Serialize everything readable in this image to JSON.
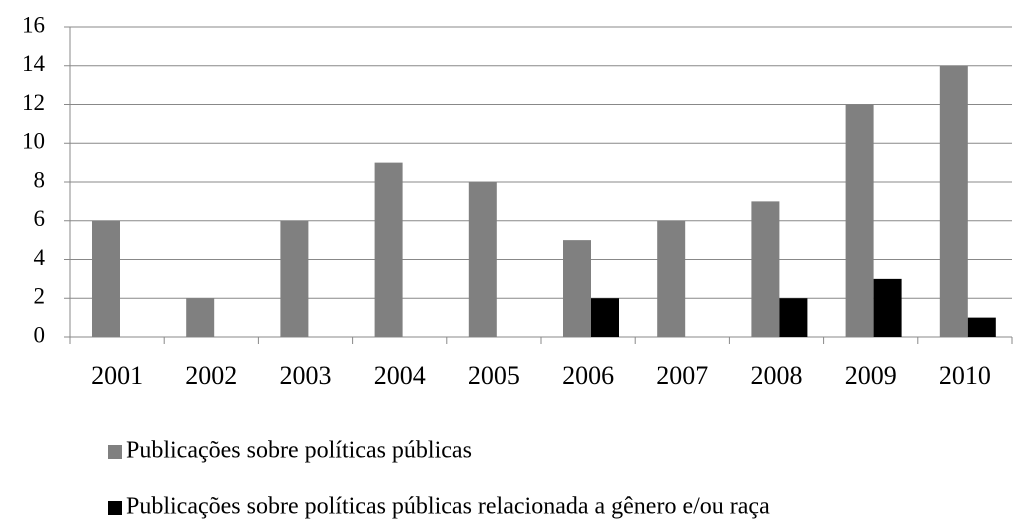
{
  "chart_data": {
    "type": "bar",
    "categories": [
      "2001",
      "2002",
      "2003",
      "2004",
      "2005",
      "2006",
      "2007",
      "2008",
      "2009",
      "2010"
    ],
    "series": [
      {
        "name": "Publicações sobre políticas públicas",
        "color": "#808080",
        "values": [
          6,
          2,
          6,
          9,
          8,
          5,
          6,
          7,
          12,
          14
        ]
      },
      {
        "name": "Publicações sobre políticas públicas relacionada a gênero e/ou raça",
        "color": "#000000",
        "values": [
          0,
          0,
          0,
          0,
          0,
          2,
          0,
          2,
          3,
          1
        ]
      }
    ],
    "ylim": [
      0,
      16
    ],
    "yticks": [
      0,
      2,
      4,
      6,
      8,
      10,
      12,
      14,
      16
    ],
    "grid": true,
    "legend": "bottom"
  }
}
